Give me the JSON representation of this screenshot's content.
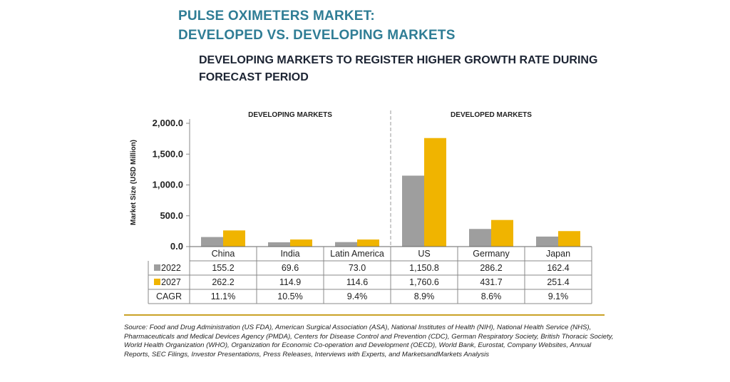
{
  "header": {
    "title_line1": "PULSE OXIMETERS MARKET:",
    "title_line2": "DEVELOPED VS. DEVELOPING MARKETS",
    "subtitle": "DEVELOPING MARKETS TO REGISTER HIGHER GROWTH RATE DURING FORECAST PERIOD"
  },
  "colors": {
    "title": "#2f7d95",
    "s2022": "#9e9e9e",
    "s2027": "#f0b400",
    "rule": "#c9a227"
  },
  "chart_data": {
    "type": "bar",
    "ylabel": "Market Size (USD Million)",
    "ylim": [
      0,
      2000
    ],
    "yticks": [
      0,
      500,
      1000,
      1500,
      2000
    ],
    "ytick_labels": [
      "0.0",
      "500.0",
      "1,000.0",
      "1,500.0",
      "2,000.0"
    ],
    "grid": false,
    "group_labels": [
      {
        "label": "DEVELOPING MARKETS",
        "categories": [
          "China",
          "India",
          "Latin America"
        ]
      },
      {
        "label": "DEVELOPED MARKETS",
        "categories": [
          "US",
          "Germany",
          "Japan"
        ]
      }
    ],
    "categories": [
      "China",
      "India",
      "Latin America",
      "US",
      "Germany",
      "Japan"
    ],
    "series": [
      {
        "name": "2022",
        "values": [
          155.2,
          69.6,
          73.0,
          1150.8,
          286.2,
          162.4
        ],
        "labels": [
          "155.2",
          "69.6",
          "73.0",
          "1,150.8",
          "286.2",
          "162.4"
        ]
      },
      {
        "name": "2027",
        "values": [
          262.2,
          114.9,
          114.6,
          1760.6,
          431.7,
          251.4
        ],
        "labels": [
          "262.2",
          "114.9",
          "114.6",
          "1,760.6",
          "431.7",
          "251.4"
        ]
      }
    ],
    "cagr": {
      "name": "CAGR",
      "values": [
        "11.1%",
        "10.5%",
        "9.4%",
        "8.9%",
        "8.6%",
        "9.1%"
      ]
    }
  },
  "source": "Source: Food and Drug Administration (US FDA), American Surgical Association (ASA), National Institutes of Health (NIH), National Health Service (NHS), Pharmaceuticals and Medical Devices Agency (PMDA), Centers for Disease Control and Prevention (CDC), German Respiratory Society, British Thoracic Society, World Health Organization (WHO), Organization for Economic Co-operation and Development (OECD), World Bank, Eurostat, Company Websites, Annual Reports, SEC Filings, Investor Presentations, Press Releases, Interviews with Experts, and MarketsandMarkets Analysis"
}
